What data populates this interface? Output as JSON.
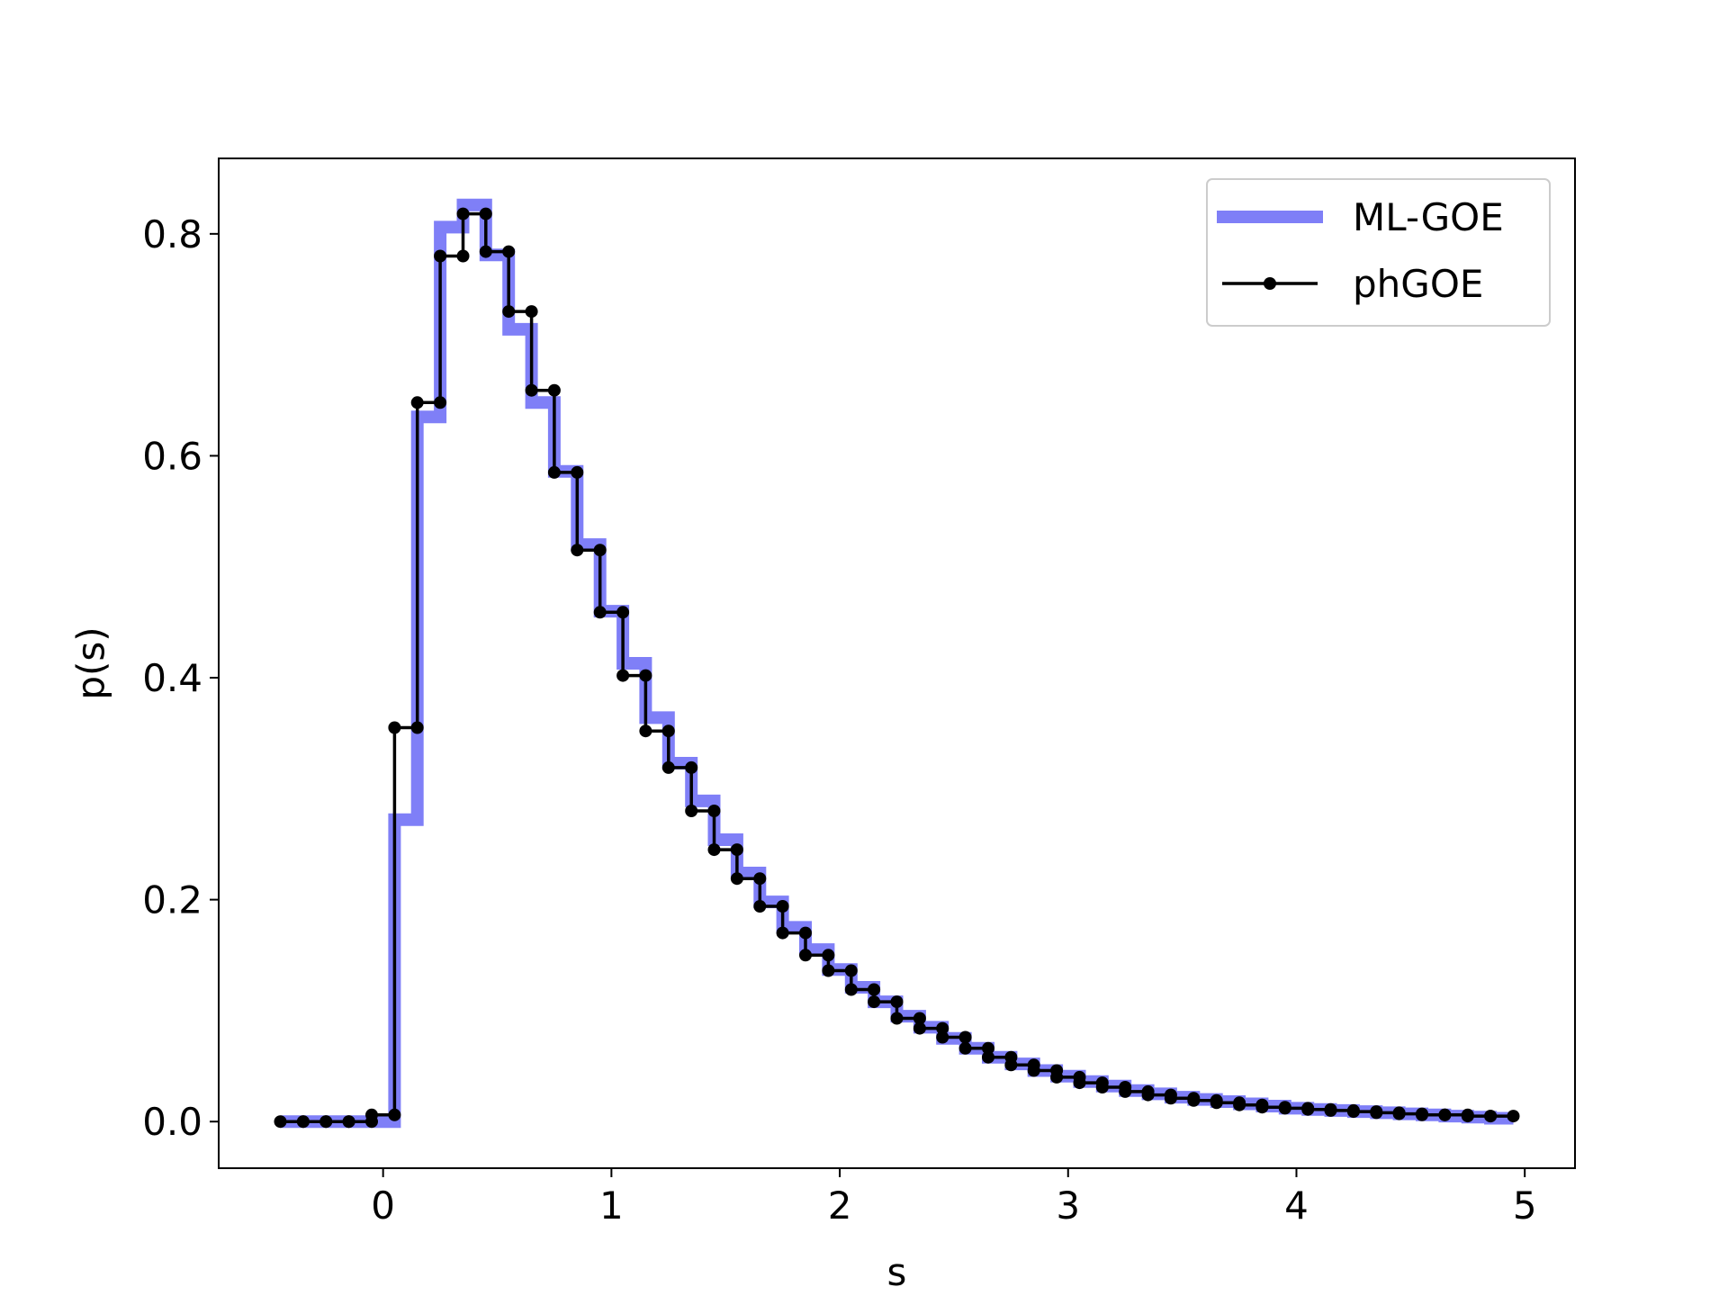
{
  "chart_data": {
    "type": "line",
    "title": "",
    "xlabel": "s",
    "ylabel": "p(s)",
    "xlim": [
      -0.72,
      5.22
    ],
    "ylim": [
      -0.042,
      0.868
    ],
    "xticks": [
      0,
      1,
      2,
      3,
      4,
      5
    ],
    "yticks": [
      0.0,
      0.2,
      0.4,
      0.6,
      0.8
    ],
    "xtick_labels": [
      "0",
      "1",
      "2",
      "3",
      "4",
      "5"
    ],
    "ytick_labels": [
      "0.0",
      "0.2",
      "0.4",
      "0.6",
      "0.8"
    ],
    "grid": false,
    "legend_position": "top-right",
    "bin_edges": [
      -0.45,
      -0.35,
      -0.25,
      -0.15,
      -0.05,
      0.05,
      0.15,
      0.25,
      0.35,
      0.45,
      0.55,
      0.65,
      0.75,
      0.85,
      0.95,
      1.05,
      1.15,
      1.25,
      1.35,
      1.45,
      1.55,
      1.65,
      1.75,
      1.85,
      1.95,
      2.05,
      2.15,
      2.25,
      2.35,
      2.45,
      2.55,
      2.65,
      2.75,
      2.85,
      2.95,
      3.05,
      3.15,
      3.25,
      3.35,
      3.45,
      3.55,
      3.65,
      3.75,
      3.85,
      3.95,
      4.05,
      4.15,
      4.25,
      4.35,
      4.45,
      4.55,
      4.65,
      4.75,
      4.85,
      4.95
    ],
    "series": [
      {
        "name": "ML-GOE",
        "style": "step",
        "color": "#7f7ff7",
        "values": [
          0.0,
          0.0,
          0.0,
          0.0,
          0.0,
          0.272,
          0.635,
          0.806,
          0.826,
          0.781,
          0.714,
          0.648,
          0.586,
          0.52,
          0.46,
          0.413,
          0.364,
          0.323,
          0.289,
          0.254,
          0.224,
          0.198,
          0.175,
          0.155,
          0.137,
          0.121,
          0.108,
          0.095,
          0.085,
          0.075,
          0.066,
          0.058,
          0.052,
          0.046,
          0.041,
          0.036,
          0.032,
          0.028,
          0.025,
          0.022,
          0.02,
          0.018,
          0.016,
          0.014,
          0.012,
          0.011,
          0.01,
          0.009,
          0.008,
          0.007,
          0.006,
          0.005,
          0.004,
          0.003
        ]
      },
      {
        "name": "phGOE",
        "style": "step-with-markers",
        "color": "#000000",
        "values": [
          0.0,
          0.0,
          0.0,
          0.0,
          0.006,
          0.355,
          0.648,
          0.78,
          0.818,
          0.784,
          0.73,
          0.659,
          0.585,
          0.515,
          0.459,
          0.402,
          0.352,
          0.319,
          0.28,
          0.245,
          0.219,
          0.194,
          0.17,
          0.15,
          0.136,
          0.119,
          0.108,
          0.093,
          0.084,
          0.076,
          0.066,
          0.058,
          0.051,
          0.046,
          0.04,
          0.035,
          0.031,
          0.027,
          0.024,
          0.021,
          0.019,
          0.017,
          0.015,
          0.013,
          0.012,
          0.011,
          0.01,
          0.009,
          0.008,
          0.007,
          0.006,
          0.006,
          0.005,
          0.005
        ]
      }
    ]
  }
}
